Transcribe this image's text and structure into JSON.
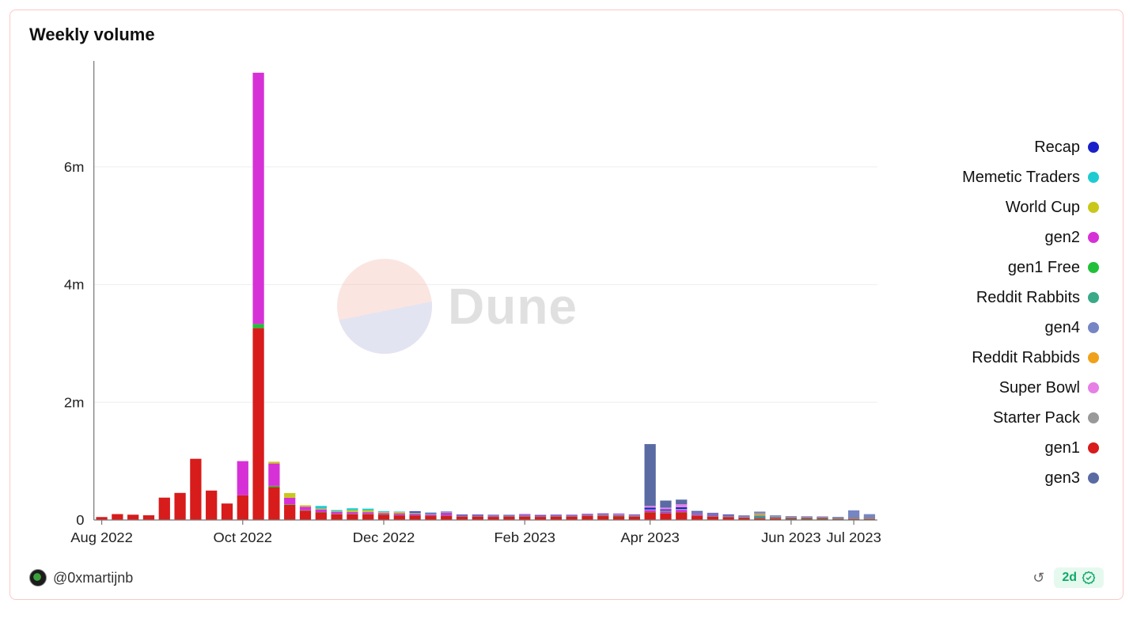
{
  "card": {
    "title": "Weekly volume",
    "author_handle": "@0xmartijnb",
    "refresh_age": "2d",
    "watermark_text": "Dune"
  },
  "chart": {
    "type": "stacked-bar",
    "background_color": "#ffffff",
    "grid_color": "#eeeeee",
    "axis_color": "#777777",
    "label_fontsize": 18,
    "ylim": [
      0,
      7800000
    ],
    "yticks": [
      0,
      2000000,
      4000000,
      6000000
    ],
    "ytick_labels": [
      "0",
      "2m",
      "4m",
      "6m"
    ],
    "xtick_indices": [
      0,
      9,
      18,
      27,
      35,
      44,
      48
    ],
    "xtick_labels": [
      "Aug 2022",
      "Oct 2022",
      "Dec 2022",
      "Feb 2023",
      "Apr 2023",
      "Jun 2023",
      "Jul 2023"
    ],
    "n_weeks": 50,
    "series_colors": {
      "gen1": "#d81b1b",
      "gen2": "#d631d6",
      "gen3": "#5a6aa3",
      "gen4": "#7685c4",
      "gen1 Free": "#22c03a",
      "World Cup": "#c9c81a",
      "Recap": "#1a21c8",
      "Memetic Traders": "#1fcbd1",
      "Reddit Rabbits": "#3aa987",
      "Reddit Rabbids": "#f0a11a",
      "Super Bowl": "#e67fe6",
      "Starter Pack": "#999999"
    },
    "legend_order": [
      "Recap",
      "Memetic Traders",
      "World Cup",
      "gen2",
      "gen1 Free",
      "Reddit Rabbits",
      "gen4",
      "Reddit Rabbids",
      "Super Bowl",
      "Starter Pack",
      "gen1",
      "gen3"
    ],
    "stack_order_bottom_up": [
      "gen1",
      "gen1 Free",
      "gen2",
      "World Cup",
      "Memetic Traders",
      "Recap",
      "Reddit Rabbits",
      "Reddit Rabbids",
      "Super Bowl",
      "Starter Pack",
      "gen3",
      "gen4"
    ],
    "series_data": {
      "gen1": [
        50000,
        100000,
        90000,
        80000,
        380000,
        460000,
        1040000,
        500000,
        280000,
        420000,
        3260000,
        560000,
        260000,
        160000,
        130000,
        100000,
        100000,
        100000,
        90000,
        80000,
        80000,
        70000,
        70000,
        60000,
        60000,
        55000,
        60000,
        60000,
        55000,
        60000,
        60000,
        70000,
        70000,
        65000,
        60000,
        130000,
        110000,
        130000,
        75000,
        60000,
        50000,
        40000,
        30000,
        30000,
        25000,
        25000,
        25000,
        20000,
        20000,
        20000
      ],
      "gen2": [
        0,
        0,
        0,
        0,
        0,
        0,
        0,
        0,
        0,
        580000,
        4270000,
        380000,
        110000,
        60000,
        45000,
        35000,
        30000,
        30000,
        25000,
        30000,
        25000,
        25000,
        50000,
        20000,
        20000,
        20000,
        15000,
        15000,
        15000,
        15000,
        15000,
        20000,
        20000,
        20000,
        15000,
        35000,
        35000,
        40000,
        25000,
        20000,
        15000,
        12000,
        10000,
        10000,
        10000,
        10000,
        10000,
        8000,
        10000,
        10000
      ],
      "gen1 Free": [
        0,
        0,
        0,
        0,
        0,
        0,
        0,
        0,
        0,
        0,
        70000,
        20000,
        8000,
        5000,
        4000,
        4000,
        4000,
        3000,
        3000,
        3000,
        3000,
        3000,
        3000,
        2000,
        2000,
        2000,
        2000,
        2000,
        2000,
        2000,
        2000,
        2000,
        2000,
        2000,
        2000,
        4000,
        4000,
        4000,
        2000,
        2000,
        2000,
        2000,
        2000,
        2000,
        2000,
        2000,
        2000,
        2000,
        2000,
        2000
      ],
      "World Cup": [
        0,
        0,
        0,
        0,
        0,
        0,
        0,
        0,
        0,
        0,
        0,
        30000,
        80000,
        25000,
        15000,
        10000,
        30000,
        30000,
        15000,
        20000,
        10000,
        8000,
        6000,
        4000,
        4000,
        4000,
        3000,
        3000,
        3000,
        3000,
        3000,
        3000,
        3000,
        3000,
        3000,
        5000,
        5000,
        6000,
        3000,
        3000,
        2000,
        2000,
        2000,
        2000,
        2000,
        2000,
        2000,
        2000,
        2000,
        2000
      ],
      "Memetic Traders": [
        0,
        0,
        0,
        0,
        0,
        0,
        0,
        0,
        0,
        0,
        0,
        0,
        0,
        0,
        45000,
        20000,
        35000,
        30000,
        15000,
        10000,
        8000,
        6000,
        4000,
        3000,
        3000,
        3000,
        3000,
        3000,
        3000,
        3000,
        3000,
        3000,
        8000,
        8000,
        5000,
        6000,
        6000,
        6000,
        3000,
        3000,
        2000,
        2000,
        2000,
        2000,
        2000,
        2000,
        2000,
        2000,
        2000,
        2000
      ],
      "Recap": [
        0,
        0,
        0,
        0,
        0,
        0,
        0,
        0,
        0,
        0,
        0,
        0,
        0,
        0,
        0,
        0,
        0,
        0,
        0,
        0,
        20000,
        12000,
        8000,
        5000,
        4000,
        3000,
        3000,
        3000,
        3000,
        3000,
        3000,
        3000,
        4000,
        4000,
        3000,
        30000,
        20000,
        30000,
        6000,
        6000,
        4000,
        3000,
        2000,
        2000,
        2000,
        2000,
        2000,
        2000,
        2000,
        2000
      ],
      "Reddit Rabbits": [
        0,
        0,
        0,
        0,
        0,
        0,
        0,
        0,
        0,
        0,
        0,
        0,
        0,
        0,
        0,
        0,
        0,
        0,
        0,
        0,
        0,
        0,
        0,
        0,
        0,
        0,
        0,
        0,
        0,
        0,
        0,
        0,
        0,
        0,
        0,
        0,
        0,
        0,
        0,
        0,
        0,
        0,
        30000,
        5000,
        3000,
        2000,
        2000,
        2000,
        2000,
        2000
      ],
      "Reddit Rabbids": [
        0,
        0,
        0,
        0,
        0,
        0,
        0,
        0,
        0,
        0,
        0,
        0,
        0,
        0,
        0,
        0,
        0,
        0,
        0,
        0,
        0,
        0,
        0,
        0,
        0,
        0,
        0,
        0,
        0,
        0,
        0,
        0,
        0,
        0,
        0,
        0,
        0,
        0,
        0,
        0,
        0,
        0,
        20000,
        4000,
        2000,
        2000,
        2000,
        2000,
        2000,
        2000
      ],
      "Super Bowl": [
        0,
        0,
        0,
        0,
        0,
        0,
        0,
        0,
        0,
        0,
        0,
        0,
        0,
        0,
        0,
        0,
        0,
        0,
        0,
        0,
        0,
        0,
        0,
        0,
        0,
        0,
        0,
        20000,
        12000,
        8000,
        6000,
        5000,
        10000,
        10000,
        8000,
        30000,
        30000,
        50000,
        10000,
        8000,
        6000,
        4000,
        3000,
        3000,
        3000,
        3000,
        3000,
        2000,
        2000,
        2000
      ],
      "Starter Pack": [
        0,
        0,
        0,
        0,
        0,
        0,
        0,
        0,
        0,
        0,
        0,
        0,
        0,
        0,
        0,
        0,
        0,
        0,
        0,
        0,
        0,
        0,
        0,
        0,
        0,
        0,
        0,
        0,
        0,
        0,
        0,
        0,
        0,
        0,
        0,
        0,
        0,
        0,
        0,
        0,
        0,
        0,
        25000,
        5000,
        3000,
        2000,
        2000,
        2000,
        2000,
        2000
      ],
      "gen3": [
        0,
        0,
        0,
        0,
        0,
        0,
        0,
        0,
        0,
        0,
        0,
        0,
        0,
        0,
        0,
        0,
        0,
        0,
        0,
        0,
        0,
        0,
        0,
        0,
        0,
        0,
        0,
        0,
        0,
        0,
        0,
        0,
        0,
        0,
        0,
        1050000,
        120000,
        80000,
        30000,
        20000,
        15000,
        12000,
        15000,
        12000,
        10000,
        10000,
        8000,
        8000,
        8000,
        8000
      ],
      "gen4": [
        0,
        0,
        0,
        0,
        0,
        0,
        0,
        0,
        0,
        0,
        0,
        0,
        0,
        0,
        0,
        0,
        0,
        0,
        0,
        0,
        0,
        0,
        0,
        0,
        0,
        0,
        0,
        0,
        0,
        0,
        0,
        0,
        0,
        0,
        0,
        0,
        0,
        0,
        0,
        0,
        0,
        0,
        0,
        0,
        0,
        0,
        0,
        0,
        110000,
        45000
      ]
    }
  }
}
